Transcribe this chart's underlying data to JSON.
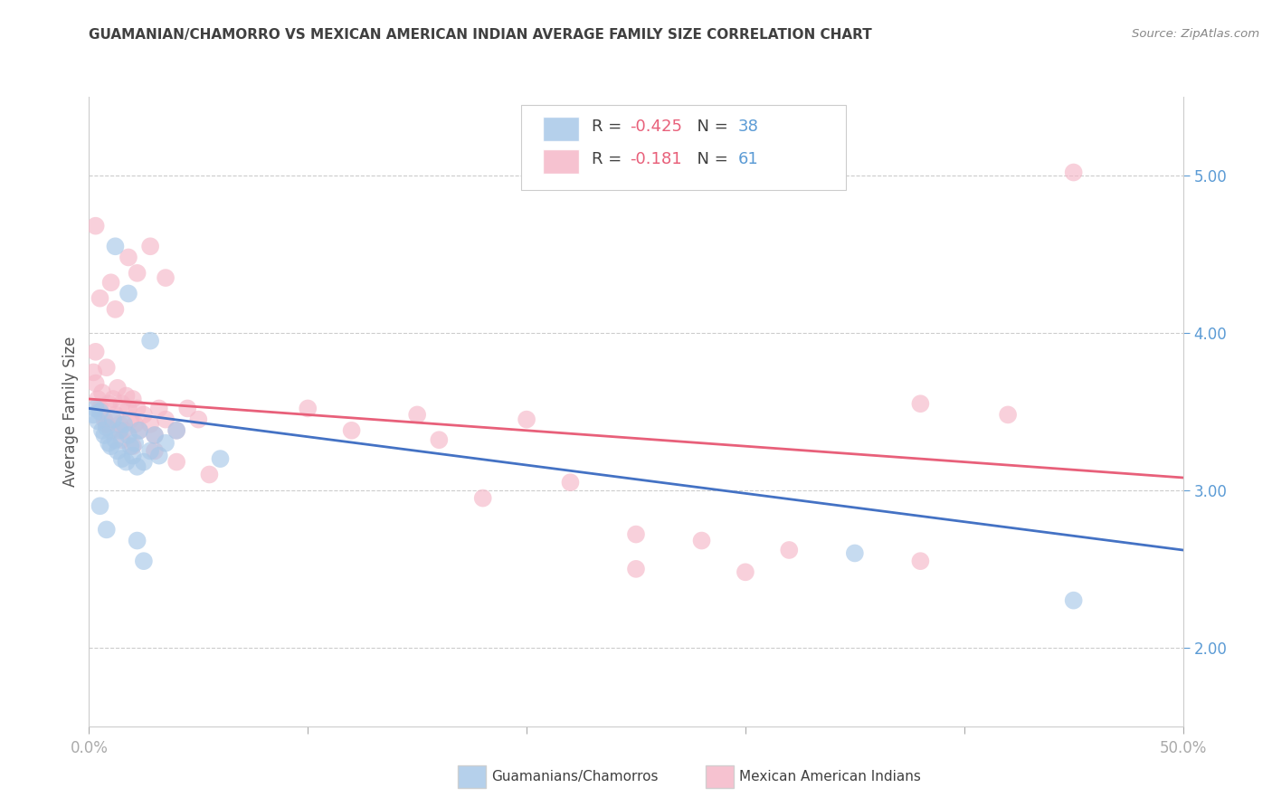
{
  "title": "GUAMANIAN/CHAMORRO VS MEXICAN AMERICAN INDIAN AVERAGE FAMILY SIZE CORRELATION CHART",
  "source": "Source: ZipAtlas.com",
  "ylabel": "Average Family Size",
  "right_yticks": [
    2.0,
    3.0,
    4.0,
    5.0
  ],
  "legend_blue_r": "-0.425",
  "legend_blue_n": "38",
  "legend_pink_r": "-0.181",
  "legend_pink_n": "61",
  "legend_blue_label": "Guamanians/Chamorros",
  "legend_pink_label": "Mexican American Indians",
  "blue_color": "#a8c8e8",
  "pink_color": "#f5b8c8",
  "blue_line_color": "#4472c4",
  "pink_line_color": "#e8607a",
  "blue_scatter": [
    [
      0.002,
      3.48
    ],
    [
      0.003,
      3.52
    ],
    [
      0.004,
      3.44
    ],
    [
      0.005,
      3.5
    ],
    [
      0.006,
      3.38
    ],
    [
      0.007,
      3.35
    ],
    [
      0.008,
      3.4
    ],
    [
      0.009,
      3.3
    ],
    [
      0.01,
      3.28
    ],
    [
      0.011,
      3.45
    ],
    [
      0.012,
      3.32
    ],
    [
      0.013,
      3.25
    ],
    [
      0.014,
      3.38
    ],
    [
      0.015,
      3.2
    ],
    [
      0.016,
      3.42
    ],
    [
      0.017,
      3.18
    ],
    [
      0.018,
      3.35
    ],
    [
      0.019,
      3.28
    ],
    [
      0.02,
      3.22
    ],
    [
      0.021,
      3.3
    ],
    [
      0.022,
      3.15
    ],
    [
      0.023,
      3.38
    ],
    [
      0.025,
      3.18
    ],
    [
      0.028,
      3.25
    ],
    [
      0.03,
      3.35
    ],
    [
      0.032,
      3.22
    ],
    [
      0.035,
      3.3
    ],
    [
      0.04,
      3.38
    ],
    [
      0.012,
      4.55
    ],
    [
      0.018,
      4.25
    ],
    [
      0.028,
      3.95
    ],
    [
      0.005,
      2.9
    ],
    [
      0.008,
      2.75
    ],
    [
      0.022,
      2.68
    ],
    [
      0.025,
      2.55
    ],
    [
      0.06,
      3.2
    ],
    [
      0.35,
      2.6
    ],
    [
      0.45,
      2.3
    ]
  ],
  "pink_scatter": [
    [
      0.002,
      3.75
    ],
    [
      0.003,
      3.68
    ],
    [
      0.004,
      3.58
    ],
    [
      0.005,
      3.52
    ],
    [
      0.006,
      3.62
    ],
    [
      0.007,
      3.45
    ],
    [
      0.008,
      3.42
    ],
    [
      0.009,
      3.55
    ],
    [
      0.01,
      3.38
    ],
    [
      0.011,
      3.58
    ],
    [
      0.012,
      3.48
    ],
    [
      0.013,
      3.65
    ],
    [
      0.014,
      3.42
    ],
    [
      0.015,
      3.55
    ],
    [
      0.016,
      3.38
    ],
    [
      0.017,
      3.6
    ],
    [
      0.018,
      3.52
    ],
    [
      0.019,
      3.45
    ],
    [
      0.02,
      3.58
    ],
    [
      0.021,
      3.42
    ],
    [
      0.022,
      3.52
    ],
    [
      0.023,
      3.38
    ],
    [
      0.025,
      3.48
    ],
    [
      0.028,
      3.42
    ],
    [
      0.03,
      3.35
    ],
    [
      0.032,
      3.52
    ],
    [
      0.035,
      3.45
    ],
    [
      0.04,
      3.38
    ],
    [
      0.045,
      3.52
    ],
    [
      0.05,
      3.45
    ],
    [
      0.003,
      4.68
    ],
    [
      0.01,
      4.32
    ],
    [
      0.018,
      4.48
    ],
    [
      0.022,
      4.38
    ],
    [
      0.028,
      4.55
    ],
    [
      0.035,
      4.35
    ],
    [
      0.005,
      4.22
    ],
    [
      0.012,
      4.15
    ],
    [
      0.003,
      3.88
    ],
    [
      0.008,
      3.78
    ],
    [
      0.015,
      3.32
    ],
    [
      0.02,
      3.28
    ],
    [
      0.03,
      3.25
    ],
    [
      0.04,
      3.18
    ],
    [
      0.055,
      3.1
    ],
    [
      0.1,
      3.52
    ],
    [
      0.15,
      3.48
    ],
    [
      0.2,
      3.45
    ],
    [
      0.12,
      3.38
    ],
    [
      0.16,
      3.32
    ],
    [
      0.25,
      2.72
    ],
    [
      0.28,
      2.68
    ],
    [
      0.32,
      2.62
    ],
    [
      0.38,
      2.55
    ],
    [
      0.25,
      2.5
    ],
    [
      0.3,
      2.48
    ],
    [
      0.45,
      5.02
    ],
    [
      0.38,
      3.55
    ],
    [
      0.42,
      3.48
    ],
    [
      0.18,
      2.95
    ],
    [
      0.22,
      3.05
    ]
  ],
  "xlim": [
    0,
    0.5
  ],
  "ylim": [
    1.5,
    5.5
  ],
  "blue_line": [
    [
      0.0,
      3.52
    ],
    [
      0.5,
      2.62
    ]
  ],
  "pink_line": [
    [
      0.0,
      3.58
    ],
    [
      0.5,
      3.08
    ]
  ],
  "grid_yticks": [
    2.0,
    3.0,
    4.0,
    5.0
  ]
}
